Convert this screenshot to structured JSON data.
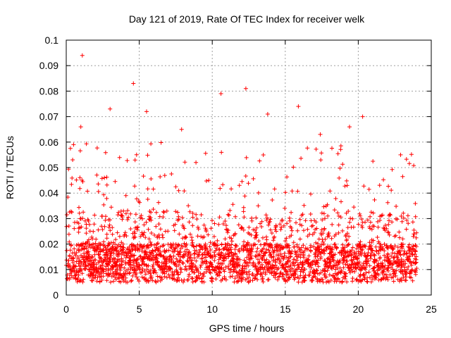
{
  "chart_data": {
    "type": "scatter",
    "title": "Day 121 of 2019, Rate Of TEC Index for receiver welk",
    "xlabel": "GPS time / hours",
    "ylabel": "ROTI / TECUs",
    "xlim": [
      0,
      25
    ],
    "ylim": [
      0,
      0.1
    ],
    "xticks": [
      0,
      5,
      10,
      15,
      20,
      25
    ],
    "xtick_labels": [
      "0",
      "5",
      "10",
      "15",
      "20",
      "25"
    ],
    "yticks": [
      0,
      0.01,
      0.02,
      0.03,
      0.04,
      0.05,
      0.06,
      0.07,
      0.08,
      0.09,
      0.1
    ],
    "ytick_labels": [
      "0",
      "0.01",
      "0.02",
      "0.03",
      "0.04",
      "0.05",
      "0.06",
      "0.07",
      "0.08",
      "0.09",
      "0.1"
    ],
    "grid": true,
    "marker": "+",
    "series": [
      {
        "name": "ROTI",
        "color": "#ff0000",
        "x_range": [
          0,
          24
        ],
        "base_range": [
          0.005,
          0.02
        ],
        "notable_points": [
          {
            "x": 1.1,
            "y": 0.094
          },
          {
            "x": 4.6,
            "y": 0.083
          },
          {
            "x": 12.3,
            "y": 0.081
          },
          {
            "x": 10.6,
            "y": 0.079
          },
          {
            "x": 3.0,
            "y": 0.073
          },
          {
            "x": 5.5,
            "y": 0.072
          },
          {
            "x": 15.9,
            "y": 0.074
          },
          {
            "x": 13.8,
            "y": 0.071
          },
          {
            "x": 20.3,
            "y": 0.07
          },
          {
            "x": 19.4,
            "y": 0.066
          },
          {
            "x": 1.0,
            "y": 0.066
          },
          {
            "x": 7.9,
            "y": 0.065
          },
          {
            "x": 17.4,
            "y": 0.063
          },
          {
            "x": 0.5,
            "y": 0.059
          },
          {
            "x": 22.9,
            "y": 0.055
          }
        ]
      }
    ]
  }
}
